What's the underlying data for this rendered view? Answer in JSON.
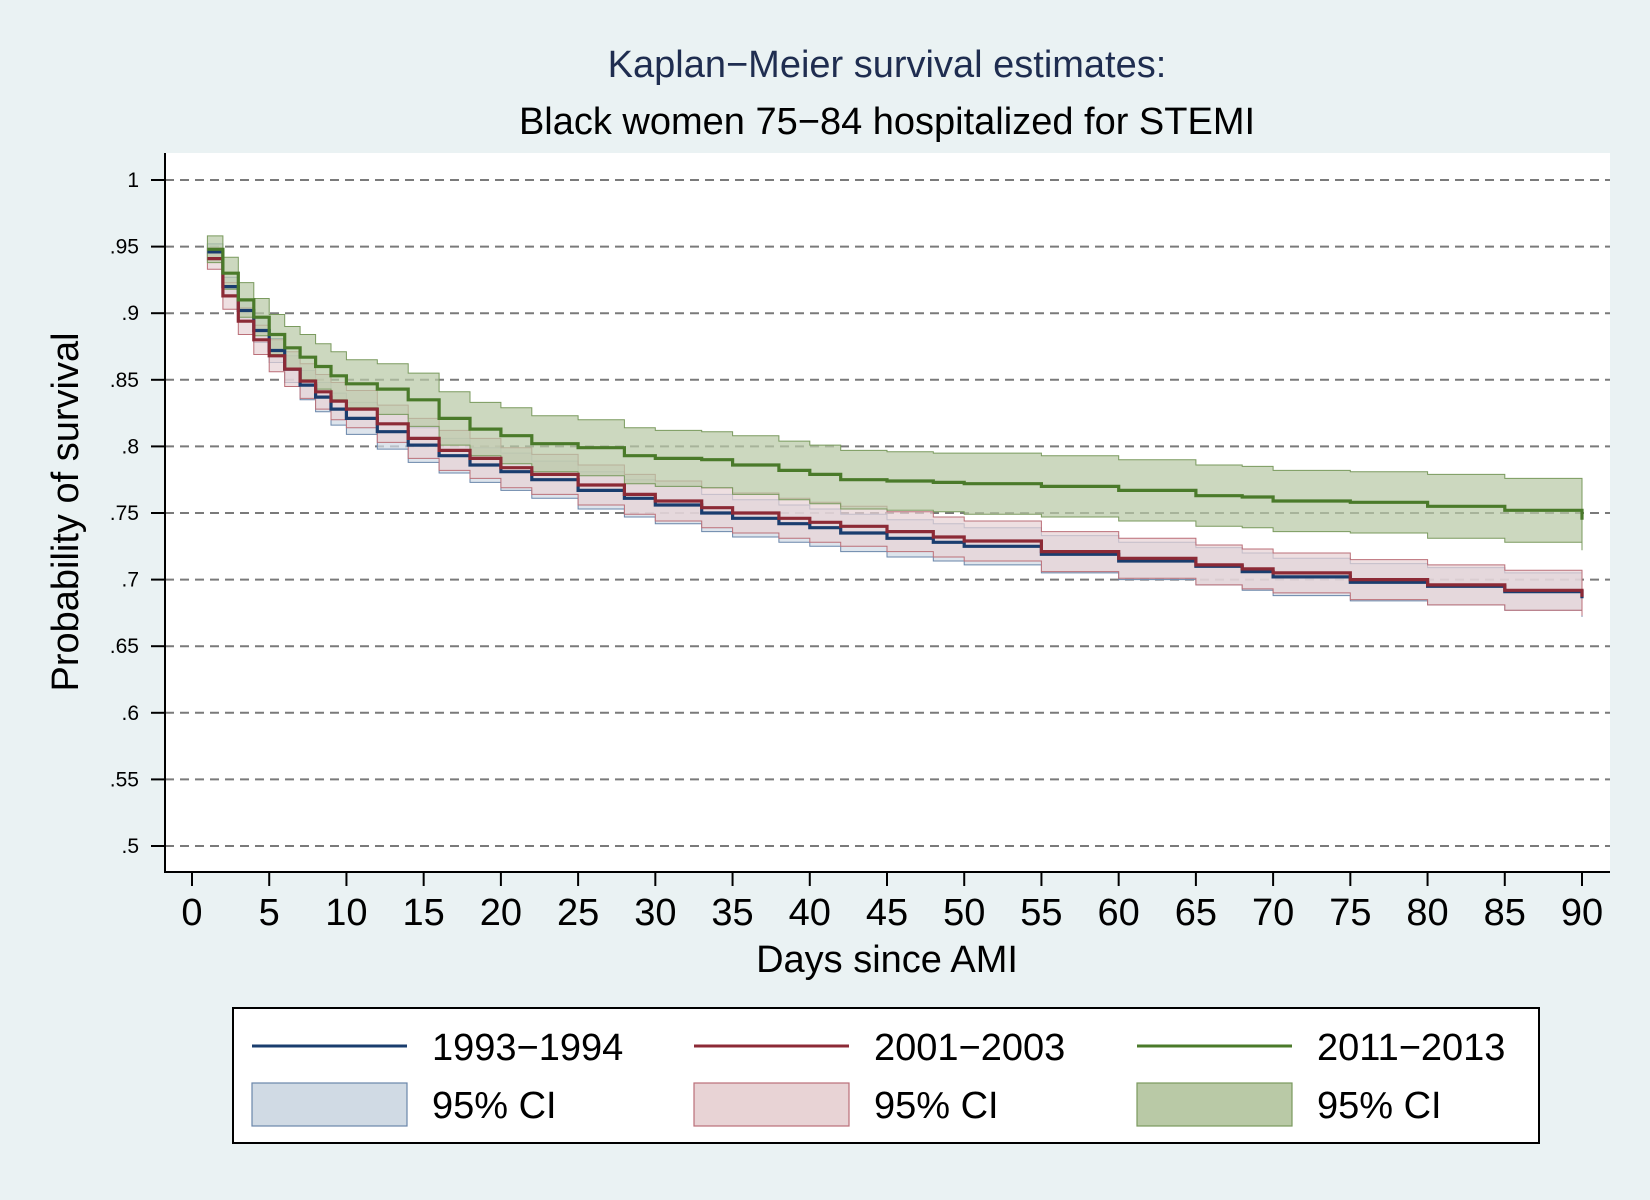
{
  "chart_data": {
    "type": "line",
    "title": "Kaplan−Meier survival estimates:",
    "subtitle": "Black women 75−84 hospitalized for STEMI",
    "xlabel": "Days since AMI",
    "ylabel": "Probability of survival",
    "xlim": [
      0,
      90
    ],
    "ylim": [
      0.5,
      1
    ],
    "xticks": [
      0,
      5,
      10,
      15,
      20,
      25,
      30,
      35,
      40,
      45,
      50,
      55,
      60,
      65,
      70,
      75,
      80,
      85,
      90
    ],
    "xtick_labels": [
      "0",
      "5",
      "10",
      "15",
      "20",
      "25",
      "30",
      "35",
      "40",
      "45",
      "50",
      "55",
      "60",
      "65",
      "70",
      "75",
      "80",
      "85",
      "90"
    ],
    "yticks": [
      0.5,
      0.55,
      0.6,
      0.65,
      0.7,
      0.75,
      0.8,
      0.85,
      0.9,
      0.95,
      1
    ],
    "ytick_labels": [
      ".5",
      ".55",
      ".6",
      ".65",
      ".7",
      ".75",
      ".8",
      ".85",
      ".9",
      ".95",
      "1"
    ],
    "grid": "horizontal dashed",
    "legend_position": "bottom",
    "x": [
      1,
      2,
      3,
      4,
      5,
      6,
      7,
      8,
      9,
      10,
      12,
      14,
      16,
      18,
      20,
      22,
      25,
      28,
      30,
      33,
      35,
      38,
      40,
      42,
      45,
      48,
      50,
      55,
      60,
      65,
      68,
      70,
      75,
      80,
      85,
      90
    ],
    "series": [
      {
        "name": "1993−1994",
        "color": "#1a3d6e",
        "ci_label": "95% CI",
        "ci_fill": "#d0dae4",
        "ci_stroke": "#6a86aa",
        "values": [
          0.946,
          0.92,
          0.902,
          0.887,
          0.872,
          0.858,
          0.846,
          0.837,
          0.828,
          0.821,
          0.811,
          0.801,
          0.793,
          0.786,
          0.781,
          0.775,
          0.767,
          0.761,
          0.756,
          0.75,
          0.746,
          0.742,
          0.739,
          0.735,
          0.731,
          0.728,
          0.725,
          0.719,
          0.714,
          0.71,
          0.706,
          0.702,
          0.698,
          0.695,
          0.691,
          0.686
        ],
        "lower": [
          0.94,
          0.913,
          0.894,
          0.878,
          0.863,
          0.848,
          0.835,
          0.826,
          0.816,
          0.809,
          0.798,
          0.788,
          0.78,
          0.773,
          0.767,
          0.761,
          0.753,
          0.747,
          0.742,
          0.736,
          0.732,
          0.728,
          0.725,
          0.721,
          0.717,
          0.714,
          0.711,
          0.705,
          0.7,
          0.696,
          0.692,
          0.688,
          0.684,
          0.681,
          0.677,
          0.672
        ],
        "upper": [
          0.952,
          0.927,
          0.91,
          0.896,
          0.881,
          0.868,
          0.857,
          0.848,
          0.84,
          0.833,
          0.824,
          0.814,
          0.806,
          0.799,
          0.795,
          0.789,
          0.781,
          0.775,
          0.77,
          0.764,
          0.76,
          0.756,
          0.753,
          0.749,
          0.745,
          0.742,
          0.739,
          0.733,
          0.728,
          0.724,
          0.72,
          0.716,
          0.712,
          0.709,
          0.705,
          0.7
        ]
      },
      {
        "name": "2001−2003",
        "color": "#8c2a36",
        "ci_label": "95% CI",
        "ci_fill": "#e8d3d5",
        "ci_stroke": "#bb6f78",
        "values": [
          0.941,
          0.913,
          0.894,
          0.88,
          0.868,
          0.858,
          0.849,
          0.841,
          0.834,
          0.828,
          0.817,
          0.806,
          0.797,
          0.791,
          0.784,
          0.779,
          0.771,
          0.764,
          0.759,
          0.754,
          0.75,
          0.746,
          0.743,
          0.74,
          0.736,
          0.732,
          0.729,
          0.721,
          0.716,
          0.711,
          0.708,
          0.705,
          0.7,
          0.696,
          0.692,
          0.687
        ],
        "lower": [
          0.933,
          0.903,
          0.884,
          0.869,
          0.856,
          0.845,
          0.836,
          0.828,
          0.82,
          0.814,
          0.803,
          0.791,
          0.782,
          0.776,
          0.769,
          0.764,
          0.756,
          0.749,
          0.744,
          0.739,
          0.735,
          0.731,
          0.728,
          0.725,
          0.721,
          0.717,
          0.714,
          0.706,
          0.701,
          0.696,
          0.693,
          0.69,
          0.685,
          0.681,
          0.677,
          0.673
        ],
        "upper": [
          0.949,
          0.923,
          0.904,
          0.891,
          0.88,
          0.871,
          0.862,
          0.854,
          0.848,
          0.842,
          0.831,
          0.821,
          0.812,
          0.806,
          0.799,
          0.794,
          0.786,
          0.779,
          0.774,
          0.769,
          0.765,
          0.761,
          0.758,
          0.755,
          0.751,
          0.747,
          0.744,
          0.736,
          0.731,
          0.726,
          0.723,
          0.72,
          0.715,
          0.711,
          0.707,
          0.701
        ]
      },
      {
        "name": "2011−2013",
        "color": "#4a7a2a",
        "ci_label": "95% CI",
        "ci_fill": "#b9c9a6",
        "ci_stroke": "#7a9a5e",
        "values": [
          0.948,
          0.93,
          0.91,
          0.897,
          0.884,
          0.874,
          0.867,
          0.86,
          0.853,
          0.847,
          0.843,
          0.835,
          0.821,
          0.813,
          0.808,
          0.802,
          0.799,
          0.793,
          0.791,
          0.79,
          0.786,
          0.782,
          0.779,
          0.775,
          0.774,
          0.773,
          0.772,
          0.77,
          0.767,
          0.763,
          0.762,
          0.759,
          0.758,
          0.755,
          0.752,
          0.745
        ],
        "lower": [
          0.938,
          0.918,
          0.897,
          0.883,
          0.869,
          0.858,
          0.85,
          0.843,
          0.835,
          0.829,
          0.824,
          0.815,
          0.801,
          0.793,
          0.787,
          0.781,
          0.778,
          0.772,
          0.77,
          0.769,
          0.764,
          0.76,
          0.757,
          0.753,
          0.752,
          0.751,
          0.749,
          0.747,
          0.744,
          0.74,
          0.739,
          0.736,
          0.735,
          0.731,
          0.728,
          0.722
        ],
        "upper": [
          0.958,
          0.942,
          0.923,
          0.911,
          0.899,
          0.89,
          0.884,
          0.877,
          0.871,
          0.865,
          0.862,
          0.855,
          0.841,
          0.833,
          0.829,
          0.823,
          0.82,
          0.814,
          0.812,
          0.811,
          0.808,
          0.804,
          0.801,
          0.797,
          0.796,
          0.795,
          0.795,
          0.793,
          0.79,
          0.786,
          0.785,
          0.782,
          0.781,
          0.779,
          0.776,
          0.769
        ]
      }
    ]
  }
}
